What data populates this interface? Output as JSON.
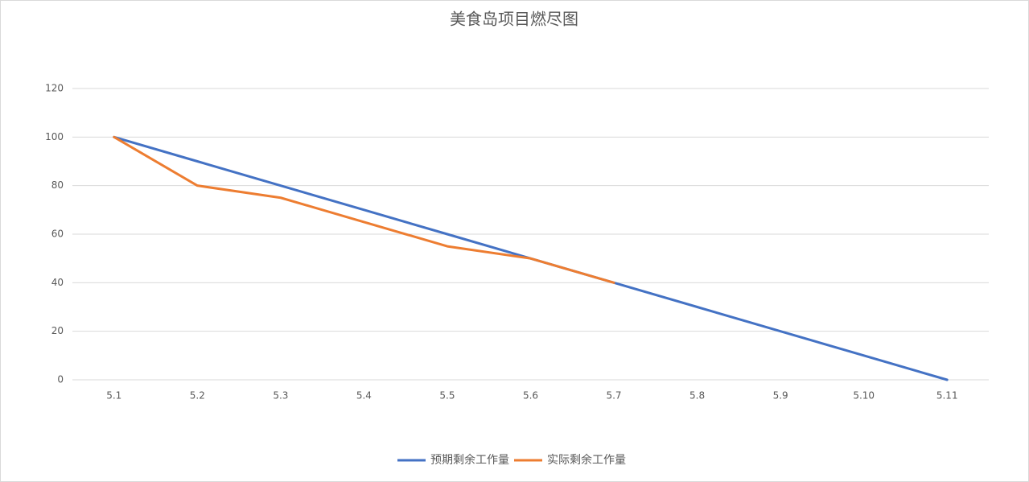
{
  "chart_data": {
    "type": "line",
    "title": "美食岛项目燃尽图",
    "categories": [
      "5.1",
      "5.2",
      "5.3",
      "5.4",
      "5.5",
      "5.6",
      "5.7",
      "5.8",
      "5.9",
      "5.10",
      "5.11"
    ],
    "series": [
      {
        "name": "预期剩余工作量",
        "color": "#4472c4",
        "values": [
          100,
          90,
          80,
          70,
          60,
          50,
          40,
          30,
          20,
          10,
          0
        ]
      },
      {
        "name": "实际剩余工作量",
        "color": "#ed7d31",
        "values": [
          100,
          80,
          75,
          65,
          55,
          50,
          40,
          null,
          null,
          null,
          null
        ]
      }
    ],
    "ylim": [
      0,
      120
    ],
    "yticks": [
      0,
      20,
      40,
      60,
      80,
      100,
      120
    ],
    "grid": true,
    "legend": "bottom"
  }
}
